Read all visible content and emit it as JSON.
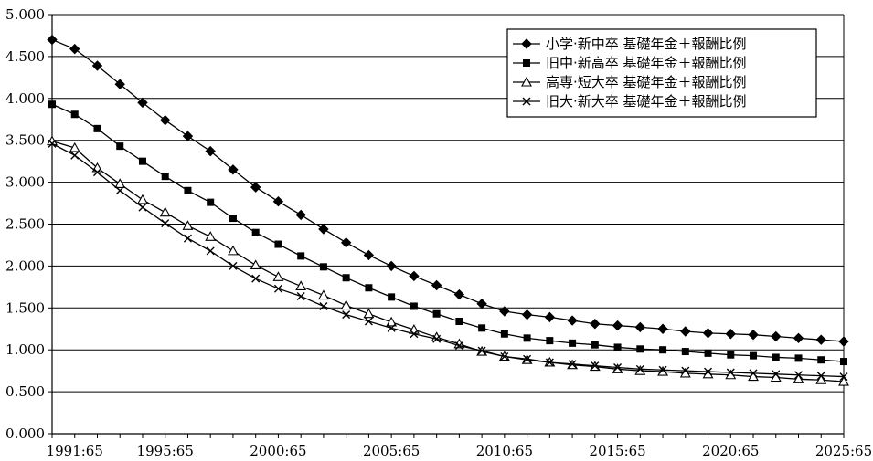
{
  "chart_data": {
    "type": "line",
    "title": "",
    "xlabel": "",
    "ylabel": "",
    "ylim": [
      0,
      5
    ],
    "y_ticks": [
      "0.000",
      "0.500",
      "1.000",
      "1.500",
      "2.000",
      "2.500",
      "3.000",
      "3.500",
      "4.000",
      "4.500",
      "5.000"
    ],
    "x_ticks": [
      "1991:65",
      "1995:65",
      "2000:65",
      "2005:65",
      "2010:65",
      "2015:65",
      "2020:65",
      "2025:65"
    ],
    "x_tick_years": [
      1991,
      1995,
      2000,
      2005,
      2010,
      2015,
      2020,
      2025
    ],
    "grid": "horizontal",
    "legend_position": "top-right",
    "x": [
      1990,
      1991,
      1992,
      1993,
      1994,
      1995,
      1996,
      1997,
      1998,
      1999,
      2000,
      2001,
      2002,
      2003,
      2004,
      2005,
      2006,
      2007,
      2008,
      2009,
      2010,
      2011,
      2012,
      2013,
      2014,
      2015,
      2016,
      2017,
      2018,
      2019,
      2020,
      2021,
      2022,
      2023,
      2024,
      2025
    ],
    "series": [
      {
        "name": "小学·新中卒 基礎年金＋報酬比例",
        "marker": "diamond",
        "values": [
          4.7,
          4.59,
          4.39,
          4.17,
          3.95,
          3.74,
          3.55,
          3.37,
          3.15,
          2.94,
          2.77,
          2.61,
          2.44,
          2.28,
          2.13,
          2.0,
          1.88,
          1.77,
          1.66,
          1.55,
          1.46,
          1.42,
          1.39,
          1.35,
          1.31,
          1.29,
          1.27,
          1.25,
          1.22,
          1.2,
          1.19,
          1.18,
          1.16,
          1.14,
          1.12,
          1.1
        ]
      },
      {
        "name": "旧中·新高卒 基礎年金＋報酬比例",
        "marker": "square",
        "values": [
          3.93,
          3.81,
          3.64,
          3.43,
          3.25,
          3.07,
          2.9,
          2.76,
          2.57,
          2.4,
          2.26,
          2.12,
          1.99,
          1.86,
          1.74,
          1.63,
          1.52,
          1.43,
          1.34,
          1.26,
          1.19,
          1.14,
          1.11,
          1.08,
          1.06,
          1.03,
          1.01,
          1.0,
          0.98,
          0.96,
          0.94,
          0.93,
          0.91,
          0.9,
          0.88,
          0.86
        ]
      },
      {
        "name": "高専·短大卒 基礎年金＋報酬比例",
        "marker": "triangle",
        "values": [
          3.49,
          3.41,
          3.17,
          2.98,
          2.79,
          2.64,
          2.48,
          2.35,
          2.18,
          2.01,
          1.87,
          1.76,
          1.65,
          1.53,
          1.43,
          1.33,
          1.24,
          1.15,
          1.07,
          0.98,
          0.92,
          0.88,
          0.85,
          0.82,
          0.8,
          0.77,
          0.75,
          0.74,
          0.72,
          0.71,
          0.7,
          0.68,
          0.67,
          0.65,
          0.64,
          0.62
        ]
      },
      {
        "name": "旧大·新大卒 基礎年金＋報酬比例",
        "marker": "x",
        "values": [
          3.46,
          3.32,
          3.12,
          2.9,
          2.7,
          2.51,
          2.33,
          2.18,
          2.0,
          1.85,
          1.73,
          1.64,
          1.52,
          1.42,
          1.34,
          1.26,
          1.19,
          1.13,
          1.05,
          0.99,
          0.92,
          0.89,
          0.85,
          0.83,
          0.81,
          0.79,
          0.77,
          0.76,
          0.75,
          0.74,
          0.73,
          0.72,
          0.71,
          0.7,
          0.69,
          0.68
        ]
      }
    ]
  }
}
